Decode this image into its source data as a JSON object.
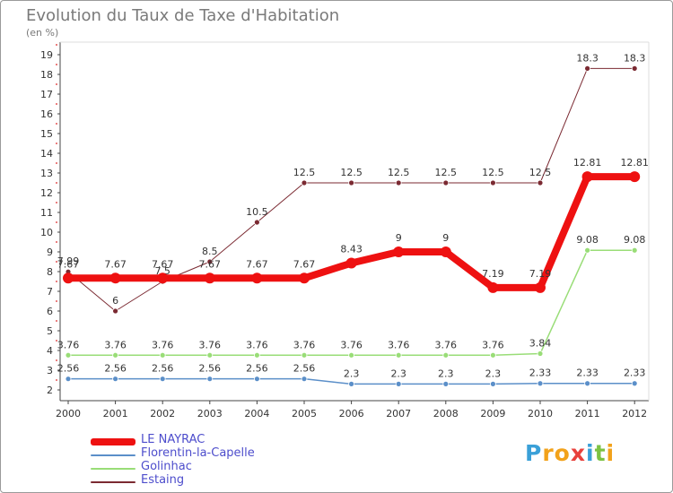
{
  "title": "Evolution du Taux de Taxe d'Habitation",
  "subtitle": "(en %)",
  "logo": [
    "P",
    "r",
    "o",
    "x",
    "i",
    "t",
    "i"
  ],
  "logo_colors": [
    "#3aa0d8",
    "#f2a21b",
    "#f2a21b",
    "#e8413c",
    "#3aa0d8",
    "#7cc243",
    "#f2a21b"
  ],
  "chart_data": {
    "type": "line",
    "x": [
      "2000",
      "2001",
      "2002",
      "2003",
      "2004",
      "2005",
      "2006",
      "2007",
      "2008",
      "2009",
      "2010",
      "2011",
      "2012"
    ],
    "ylim": [
      2,
      19
    ],
    "yticks": [
      "2",
      "3",
      "4",
      "5",
      "6",
      "7",
      "8",
      "9",
      "10",
      "11",
      "12",
      "13",
      "14",
      "15",
      "16",
      "17",
      "18",
      "19"
    ],
    "legend_position": "bottom-left",
    "series": [
      {
        "name": "Estaing",
        "color": "#7b2a32",
        "width": 1,
        "values": [
          7.99,
          6,
          7.5,
          8.5,
          10.5,
          12.5,
          12.5,
          12.5,
          12.5,
          12.5,
          12.5,
          18.3,
          18.3
        ],
        "labels": [
          "7.99",
          "6",
          "7.5",
          "8.5",
          "10.5",
          "12.5",
          "12.5",
          "12.5",
          "12.5",
          "12.5",
          "12.5",
          "18.3",
          "18.3"
        ]
      },
      {
        "name": "Golinhac",
        "color": "#99dd77",
        "width": 1.5,
        "values": [
          3.76,
          3.76,
          3.76,
          3.76,
          3.76,
          3.76,
          3.76,
          3.76,
          3.76,
          3.76,
          3.84,
          9.08,
          9.08
        ],
        "labels": [
          "3.76",
          "3.76",
          "3.76",
          "3.76",
          "3.76",
          "3.76",
          "3.76",
          "3.76",
          "3.76",
          "3.76",
          "3.84",
          "9.08",
          "9.08"
        ]
      },
      {
        "name": "Florentin-la-Capelle",
        "color": "#5b8fc9",
        "width": 1.5,
        "values": [
          2.56,
          2.56,
          2.56,
          2.56,
          2.56,
          2.56,
          2.3,
          2.3,
          2.3,
          2.3,
          2.33,
          2.33,
          2.33
        ],
        "labels": [
          "2.56",
          "2.56",
          "2.56",
          "2.56",
          "2.56",
          "2.56",
          "2.3",
          "2.3",
          "2.3",
          "2.3",
          "2.33",
          "2.33",
          "2.33"
        ]
      },
      {
        "name": "LE NAYRAC",
        "color": "#ee1111",
        "width": 8,
        "values": [
          7.67,
          7.67,
          7.67,
          7.67,
          7.67,
          7.67,
          8.43,
          9,
          9,
          7.19,
          7.19,
          12.81,
          12.81
        ],
        "labels": [
          "7.67",
          "7.67",
          "7.67",
          "7.67",
          "7.67",
          "7.67",
          "8.43",
          "9",
          "9",
          "7.19",
          "7.19",
          "12.81",
          "12.81"
        ]
      }
    ],
    "legend": [
      "LE NAYRAC",
      "Florentin-la-Capelle",
      "Golinhac",
      "Estaing"
    ]
  }
}
